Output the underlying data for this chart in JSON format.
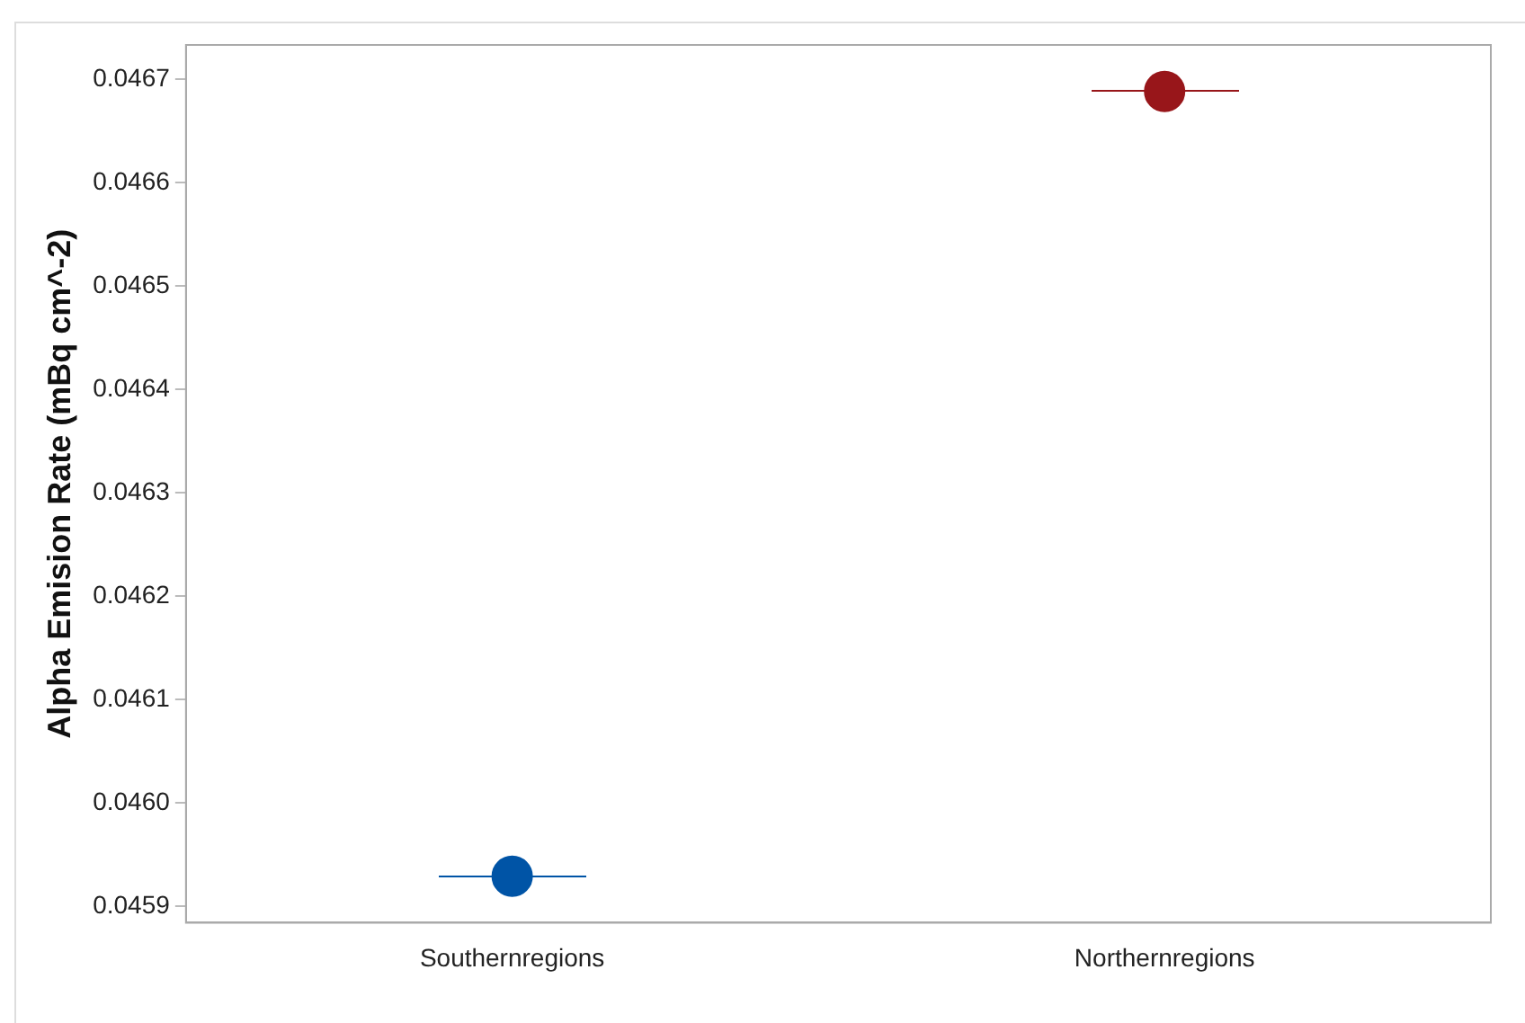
{
  "chart_data": {
    "type": "scatter",
    "ylabel": "Alpha Emision Rate (mBq cm^-2)",
    "categories": [
      "Southernregions",
      "Northernregions"
    ],
    "series": [
      {
        "values": [
          0.045929,
          0.046688
        ],
        "colors": [
          "#0054a6",
          "#98161a"
        ],
        "marker": "circle"
      }
    ],
    "ylim": [
      0.045884,
      0.046733
    ],
    "yticks": [
      0.0459,
      {
        "value": 0.046,
        "label": "0.0460"
      },
      0.0461,
      0.0462,
      0.0463,
      0.0464,
      0.0465,
      0.0466,
      0.0467
    ],
    "grid": false,
    "legend": false
  }
}
